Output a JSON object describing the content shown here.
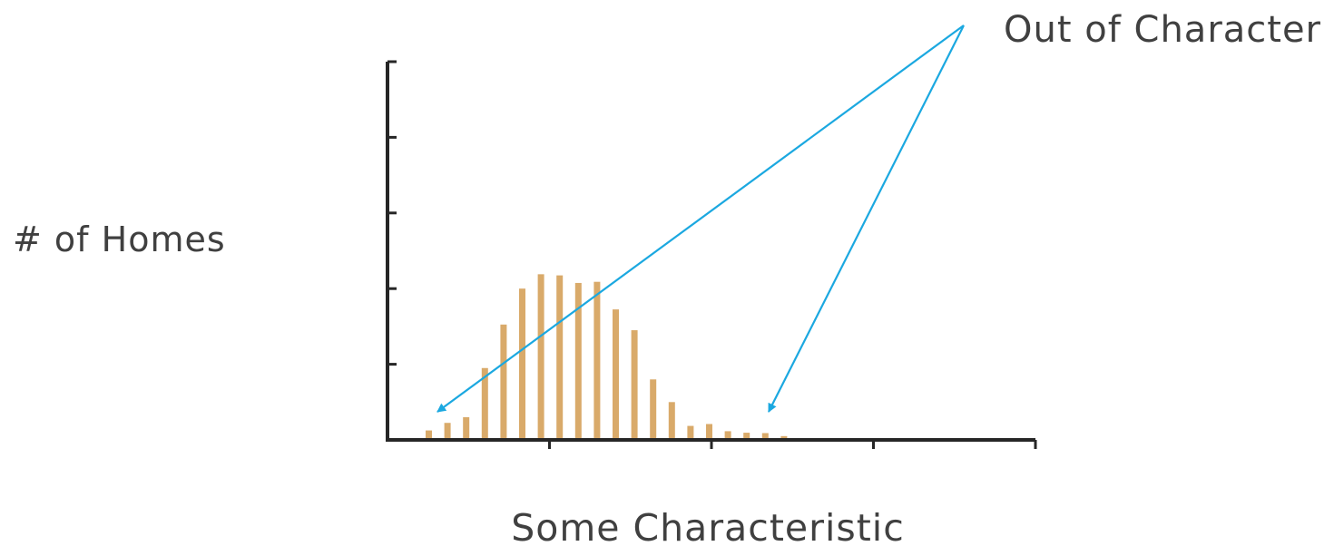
{
  "chart_data": {
    "type": "bar",
    "title": "",
    "xlabel": "Some Characteristic",
    "ylabel": "# of Homes",
    "ylim": [
      0,
      10
    ],
    "x_major_tick_count": 4,
    "y_major_tick_count": 5,
    "grid": false,
    "bar_color": "#d9aa6a",
    "values": [
      0.25,
      0.45,
      0.6,
      1.9,
      3.05,
      4.0,
      4.38,
      4.35,
      4.15,
      4.18,
      3.45,
      2.9,
      1.6,
      1.0,
      0.37,
      0.42,
      0.23,
      0.19,
      0.18,
      0.1
    ],
    "annotation": {
      "text": "Out of Character",
      "color": "#1ba8e0",
      "targets": [
        "left-tail",
        "right-tail"
      ]
    }
  }
}
